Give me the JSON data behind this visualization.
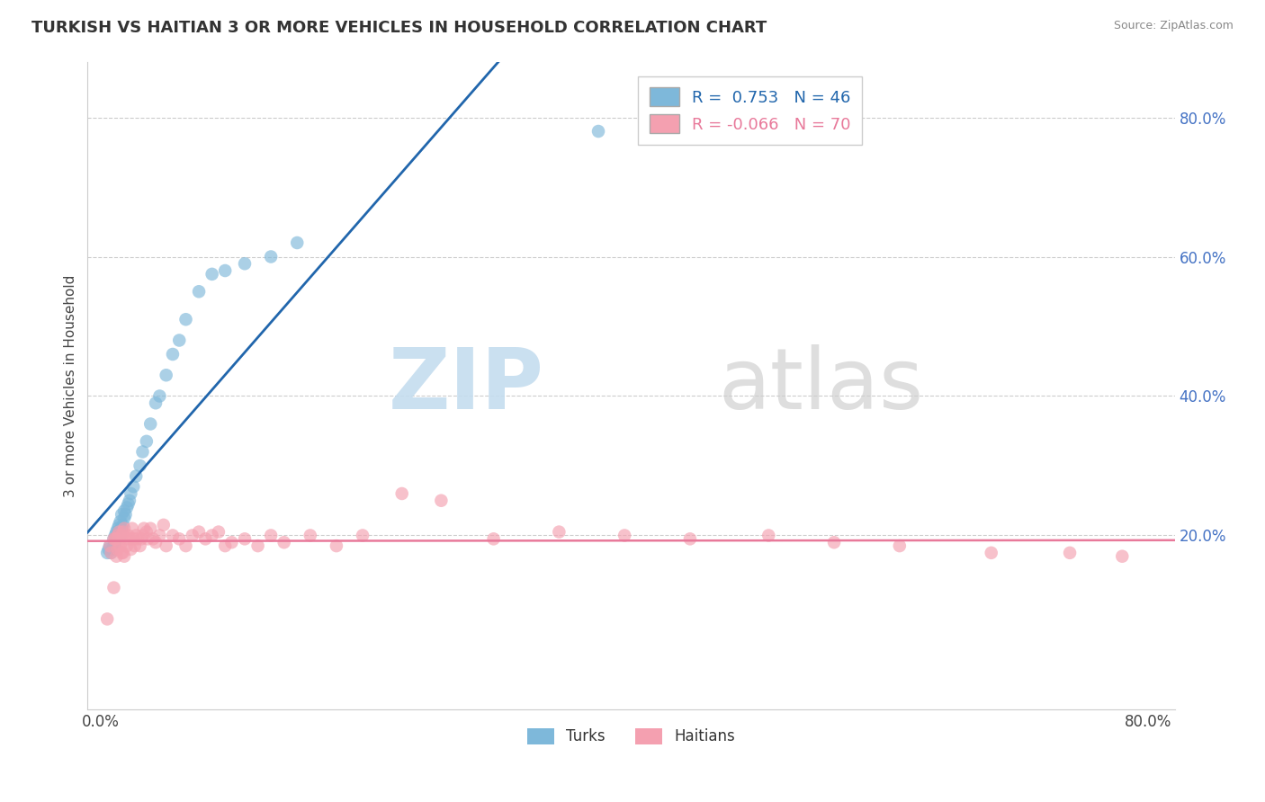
{
  "title": "TURKISH VS HAITIAN 3 OR MORE VEHICLES IN HOUSEHOLD CORRELATION CHART",
  "source": "Source: ZipAtlas.com",
  "ylabel": "3 or more Vehicles in Household",
  "xlim": [
    -0.01,
    0.82
  ],
  "ylim": [
    -0.05,
    0.88
  ],
  "xtick_positions": [
    0.0,
    0.8
  ],
  "xtick_labels": [
    "0.0%",
    "80.0%"
  ],
  "ytick_positions": [
    0.2,
    0.4,
    0.6,
    0.8
  ],
  "ytick_labels": [
    "20.0%",
    "40.0%",
    "60.0%",
    "80.0%"
  ],
  "ytick_color": "#4472C4",
  "turkish_R": 0.753,
  "turkish_N": 46,
  "haitian_R": -0.066,
  "haitian_N": 70,
  "turkish_color": "#7EB8DA",
  "haitian_color": "#F4A0B0",
  "turkish_line_color": "#2166AC",
  "haitian_line_color": "#E8799A",
  "watermark_zip": "ZIP",
  "watermark_atlas": "atlas",
  "legend_labels": [
    "Turks",
    "Haitians"
  ],
  "turkish_x": [
    0.005,
    0.006,
    0.007,
    0.008,
    0.009,
    0.01,
    0.01,
    0.011,
    0.011,
    0.012,
    0.012,
    0.013,
    0.013,
    0.014,
    0.014,
    0.015,
    0.015,
    0.016,
    0.016,
    0.017,
    0.018,
    0.018,
    0.019,
    0.02,
    0.021,
    0.022,
    0.023,
    0.025,
    0.027,
    0.03,
    0.032,
    0.035,
    0.038,
    0.042,
    0.045,
    0.05,
    0.055,
    0.06,
    0.065,
    0.075,
    0.085,
    0.095,
    0.11,
    0.13,
    0.15,
    0.38
  ],
  "turkish_y": [
    0.175,
    0.18,
    0.185,
    0.175,
    0.18,
    0.185,
    0.195,
    0.19,
    0.2,
    0.195,
    0.205,
    0.2,
    0.21,
    0.205,
    0.215,
    0.2,
    0.22,
    0.21,
    0.23,
    0.215,
    0.225,
    0.235,
    0.23,
    0.24,
    0.245,
    0.25,
    0.26,
    0.27,
    0.285,
    0.3,
    0.32,
    0.335,
    0.36,
    0.39,
    0.4,
    0.43,
    0.46,
    0.48,
    0.51,
    0.55,
    0.575,
    0.58,
    0.59,
    0.6,
    0.62,
    0.78
  ],
  "haitian_x": [
    0.005,
    0.007,
    0.008,
    0.01,
    0.01,
    0.011,
    0.012,
    0.012,
    0.013,
    0.013,
    0.014,
    0.014,
    0.015,
    0.016,
    0.016,
    0.017,
    0.017,
    0.018,
    0.018,
    0.019,
    0.02,
    0.021,
    0.022,
    0.023,
    0.024,
    0.025,
    0.026,
    0.027,
    0.028,
    0.03,
    0.031,
    0.032,
    0.033,
    0.035,
    0.036,
    0.038,
    0.04,
    0.042,
    0.045,
    0.048,
    0.05,
    0.055,
    0.06,
    0.065,
    0.07,
    0.075,
    0.08,
    0.085,
    0.09,
    0.095,
    0.1,
    0.11,
    0.12,
    0.13,
    0.14,
    0.16,
    0.18,
    0.2,
    0.23,
    0.26,
    0.3,
    0.35,
    0.4,
    0.45,
    0.51,
    0.56,
    0.61,
    0.68,
    0.74,
    0.78
  ],
  "haitian_y": [
    0.08,
    0.185,
    0.175,
    0.125,
    0.195,
    0.195,
    0.17,
    0.195,
    0.18,
    0.2,
    0.185,
    0.205,
    0.185,
    0.175,
    0.2,
    0.175,
    0.205,
    0.17,
    0.21,
    0.195,
    0.185,
    0.2,
    0.195,
    0.18,
    0.21,
    0.195,
    0.185,
    0.2,
    0.195,
    0.185,
    0.195,
    0.2,
    0.21,
    0.205,
    0.195,
    0.21,
    0.195,
    0.19,
    0.2,
    0.215,
    0.185,
    0.2,
    0.195,
    0.185,
    0.2,
    0.205,
    0.195,
    0.2,
    0.205,
    0.185,
    0.19,
    0.195,
    0.185,
    0.2,
    0.19,
    0.2,
    0.185,
    0.2,
    0.26,
    0.25,
    0.195,
    0.205,
    0.2,
    0.195,
    0.2,
    0.19,
    0.185,
    0.175,
    0.175,
    0.17
  ]
}
